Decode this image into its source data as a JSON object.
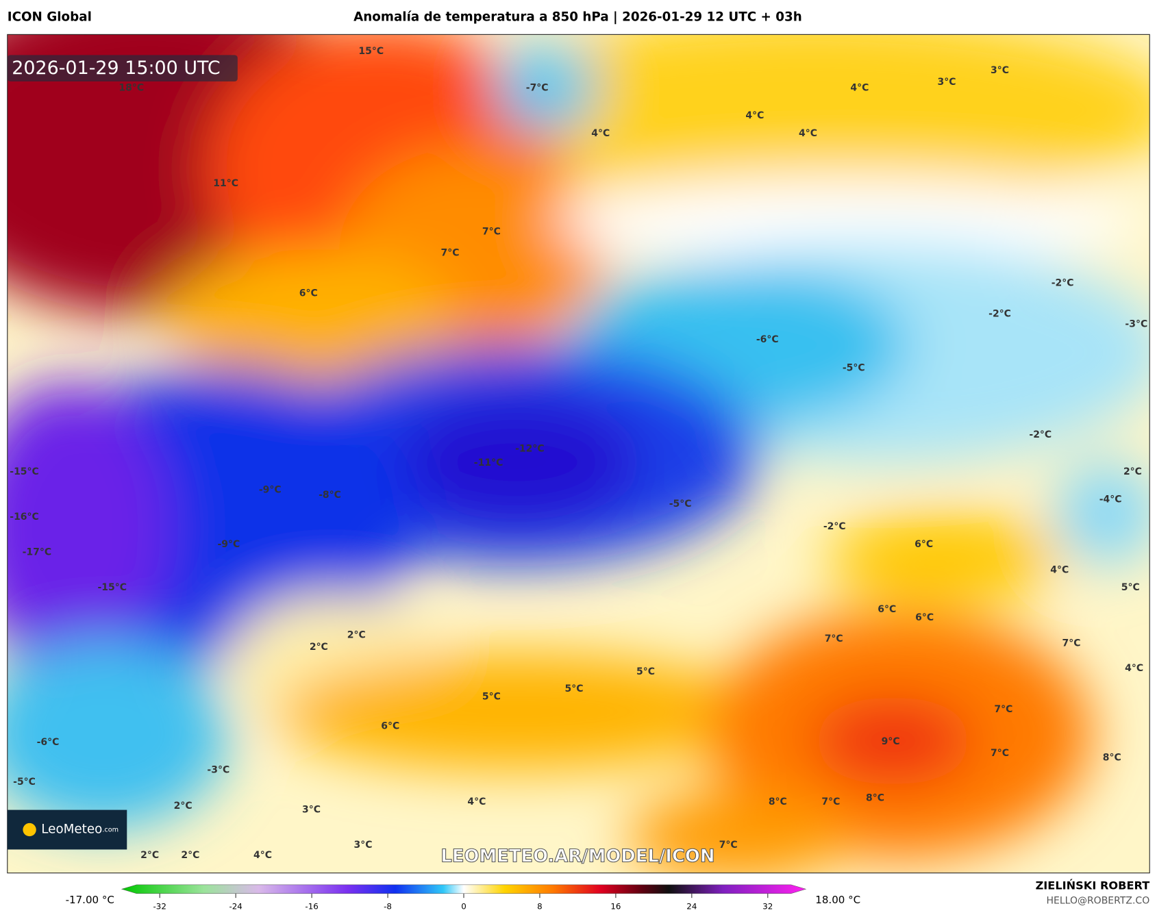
{
  "header": {
    "model": "ICON Global",
    "title": "Anomalía de temperatura a 850 hPa | 2026-01-29 12 UTC + 03h"
  },
  "map": {
    "valid_time": "2026-01-29 15:00 UTC",
    "labels": [
      "15°C",
      "18°C",
      "-7°C",
      "4°C",
      "3°C",
      "3°C",
      "4°C",
      "4°C",
      "4°C",
      "11°C",
      "7°C",
      "7°C",
      "6°C",
      "-2°C",
      "-2°C",
      "-3°C",
      "-6°C",
      "-5°C",
      "-2°C",
      "-12°C",
      "-11°C",
      "-15°C",
      "2°C",
      "-4°C",
      "-9°C",
      "-8°C",
      "-5°C",
      "-16°C",
      "-2°C",
      "6°C",
      "-9°C",
      "-17°C",
      "4°C",
      "-15°C",
      "5°C",
      "6°C",
      "6°C",
      "2°C",
      "7°C",
      "2°C",
      "7°C",
      "4°C",
      "5°C",
      "5°C",
      "5°C",
      "7°C",
      "6°C",
      "9°C",
      "-6°C",
      "7°C",
      "8°C",
      "-3°C",
      "-5°C",
      "8°C",
      "7°C",
      "8°C",
      "4°C",
      "2°C",
      "3°C",
      "3°C",
      "7°C",
      "2°C",
      "2°C",
      "4°C"
    ],
    "logo": "LeoMeteo",
    "logo_suffix": ".com",
    "watermark": "LEOMETEO.AR/MODEL/ICON"
  },
  "colorbar": {
    "min_label": "-17.00 °C",
    "max_label": "18.00 °C",
    "range": [
      -36,
      36
    ],
    "ticks": [
      -32,
      -24,
      -16,
      -8,
      0,
      8,
      16,
      24,
      32
    ]
  },
  "footer": {
    "author": "ZIELIŃSKI ROBERT",
    "email": "HELLO@ROBERTZ.CO"
  }
}
